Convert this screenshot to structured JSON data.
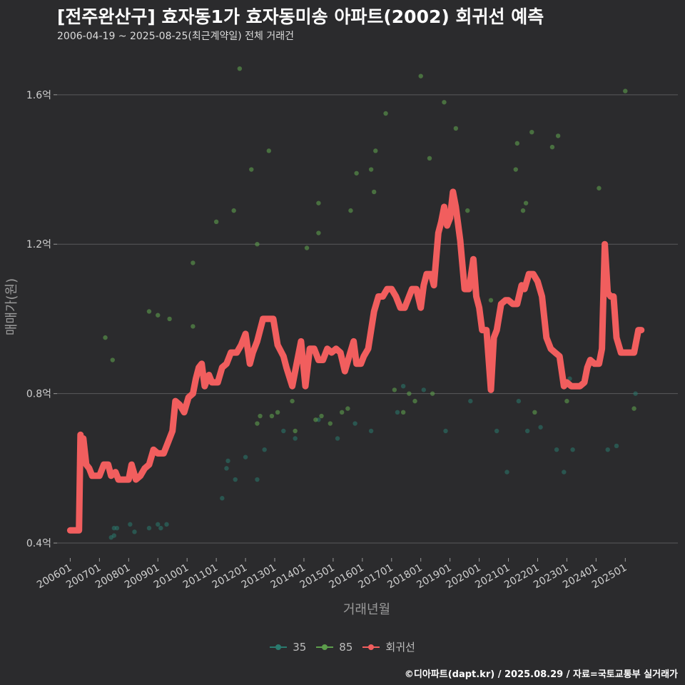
{
  "title": "[전주완산구] 효자동1가 효자동미송 아파트(2002) 회귀선 예측",
  "subtitle": "2006-04-19 ~ 2025-08-25(최근계약일) 전체 거래건",
  "credit": "©디아파트(dapt.kr) / 2025.08.29 / 자료=국토교통부 실거래가",
  "colors": {
    "s35": "#2a7a6e",
    "s85": "#5d9e4c",
    "reg": "#f15e5e",
    "grid": "#5a5a5c",
    "bg": "#2b2b2d"
  },
  "chart_data": {
    "type": "scatter",
    "xlabel": "거래년월",
    "ylabel": "매매가(원)",
    "x_range": [
      2005.55,
      2026.8
    ],
    "ylim": [
      0.36,
      1.72
    ],
    "y_ticks": [
      {
        "value": 0.4,
        "label": "0.4억"
      },
      {
        "value": 0.8,
        "label": "0.8억"
      },
      {
        "value": 1.2,
        "label": "1.2억"
      },
      {
        "value": 1.6,
        "label": "1.6억"
      }
    ],
    "x_ticks": [
      {
        "value": 2006.0,
        "label": "200601"
      },
      {
        "value": 2007.0,
        "label": "200701"
      },
      {
        "value": 2008.0,
        "label": "200801"
      },
      {
        "value": 2009.0,
        "label": "200901"
      },
      {
        "value": 2010.0,
        "label": "201001"
      },
      {
        "value": 2011.0,
        "label": "201101"
      },
      {
        "value": 2012.0,
        "label": "201201"
      },
      {
        "value": 2013.0,
        "label": "201301"
      },
      {
        "value": 2014.0,
        "label": "201401"
      },
      {
        "value": 2015.0,
        "label": "201501"
      },
      {
        "value": 2016.0,
        "label": "201601"
      },
      {
        "value": 2017.0,
        "label": "201701"
      },
      {
        "value": 2018.0,
        "label": "201801"
      },
      {
        "value": 2019.0,
        "label": "201901"
      },
      {
        "value": 2020.0,
        "label": "202001"
      },
      {
        "value": 2021.0,
        "label": "202101"
      },
      {
        "value": 2022.0,
        "label": "202201"
      },
      {
        "value": 2023.0,
        "label": "202301"
      },
      {
        "value": 2024.0,
        "label": "202401"
      },
      {
        "value": 2025.0,
        "label": "202501"
      }
    ],
    "series": [
      {
        "name": "35",
        "kind": "points",
        "points": [
          [
            2007.4,
            0.415
          ],
          [
            2007.5,
            0.42
          ],
          [
            2007.5,
            0.44
          ],
          [
            2007.6,
            0.44
          ],
          [
            2008.05,
            0.45
          ],
          [
            2008.2,
            0.43
          ],
          [
            2008.7,
            0.44
          ],
          [
            2009.0,
            0.45
          ],
          [
            2009.1,
            0.44
          ],
          [
            2009.3,
            0.45
          ],
          [
            2011.2,
            0.52
          ],
          [
            2011.35,
            0.6
          ],
          [
            2011.4,
            0.62
          ],
          [
            2011.65,
            0.57
          ],
          [
            2012.0,
            0.63
          ],
          [
            2012.4,
            0.57
          ],
          [
            2012.65,
            0.65
          ],
          [
            2013.3,
            0.7
          ],
          [
            2013.7,
            0.68
          ],
          [
            2014.5,
            0.73
          ],
          [
            2015.15,
            0.68
          ],
          [
            2015.75,
            0.72
          ],
          [
            2016.3,
            0.7
          ],
          [
            2017.4,
            0.82
          ],
          [
            2017.2,
            0.75
          ],
          [
            2018.1,
            0.81
          ],
          [
            2018.85,
            0.7
          ],
          [
            2019.7,
            0.78
          ],
          [
            2020.6,
            0.7
          ],
          [
            2020.95,
            0.59
          ],
          [
            2021.35,
            0.78
          ],
          [
            2021.65,
            0.7
          ],
          [
            2022.1,
            0.71
          ],
          [
            2022.65,
            0.65
          ],
          [
            2022.9,
            0.59
          ],
          [
            2023.1,
            0.84
          ],
          [
            2023.2,
            0.65
          ],
          [
            2024.4,
            0.65
          ],
          [
            2024.7,
            0.66
          ],
          [
            2025.35,
            0.8
          ]
        ]
      },
      {
        "name": "85",
        "kind": "points",
        "points": [
          [
            2007.2,
            0.95
          ],
          [
            2007.45,
            0.89
          ],
          [
            2008.7,
            1.02
          ],
          [
            2009.0,
            1.01
          ],
          [
            2009.4,
            1.0
          ],
          [
            2010.2,
            0.98
          ],
          [
            2010.2,
            1.15
          ],
          [
            2011.0,
            1.26
          ],
          [
            2011.6,
            1.29
          ],
          [
            2011.8,
            1.67
          ],
          [
            2012.2,
            1.4
          ],
          [
            2012.4,
            1.2
          ],
          [
            2012.4,
            0.72
          ],
          [
            2012.5,
            0.74
          ],
          [
            2012.8,
            1.45
          ],
          [
            2012.9,
            0.74
          ],
          [
            2013.1,
            0.75
          ],
          [
            2013.6,
            0.78
          ],
          [
            2013.7,
            0.7
          ],
          [
            2014.1,
            1.19
          ],
          [
            2014.4,
            0.73
          ],
          [
            2014.5,
            1.31
          ],
          [
            2014.5,
            1.23
          ],
          [
            2014.6,
            0.74
          ],
          [
            2014.9,
            0.72
          ],
          [
            2015.3,
            0.75
          ],
          [
            2015.5,
            0.76
          ],
          [
            2015.6,
            1.29
          ],
          [
            2015.8,
            1.39
          ],
          [
            2016.3,
            1.4
          ],
          [
            2016.4,
            1.34
          ],
          [
            2016.45,
            1.45
          ],
          [
            2016.8,
            1.55
          ],
          [
            2017.1,
            0.81
          ],
          [
            2017.4,
            0.75
          ],
          [
            2017.6,
            0.8
          ],
          [
            2017.8,
            0.78
          ],
          [
            2018.0,
            1.65
          ],
          [
            2018.3,
            1.43
          ],
          [
            2018.4,
            0.8
          ],
          [
            2018.8,
            1.58
          ],
          [
            2019.2,
            1.51
          ],
          [
            2019.6,
            1.29
          ],
          [
            2020.4,
            1.05
          ],
          [
            2021.25,
            1.4
          ],
          [
            2021.3,
            1.47
          ],
          [
            2021.5,
            1.29
          ],
          [
            2021.6,
            1.31
          ],
          [
            2021.8,
            1.5
          ],
          [
            2021.9,
            0.75
          ],
          [
            2022.5,
            1.46
          ],
          [
            2022.7,
            1.49
          ],
          [
            2023.0,
            0.78
          ],
          [
            2024.1,
            1.35
          ],
          [
            2025.0,
            1.61
          ],
          [
            2025.3,
            0.76
          ]
        ]
      },
      {
        "name": "회귀선",
        "kind": "line",
        "points": [
          [
            2006.0,
            0.434
          ],
          [
            2006.15,
            0.434
          ],
          [
            2006.3,
            0.434
          ],
          [
            2006.35,
            0.69
          ],
          [
            2006.4,
            0.62
          ],
          [
            2006.45,
            0.68
          ],
          [
            2006.55,
            0.61
          ],
          [
            2006.65,
            0.6
          ],
          [
            2006.75,
            0.58
          ],
          [
            2007.0,
            0.58
          ],
          [
            2007.15,
            0.61
          ],
          [
            2007.3,
            0.61
          ],
          [
            2007.4,
            0.58
          ],
          [
            2007.55,
            0.59
          ],
          [
            2007.65,
            0.57
          ],
          [
            2008.0,
            0.57
          ],
          [
            2008.1,
            0.61
          ],
          [
            2008.25,
            0.57
          ],
          [
            2008.4,
            0.58
          ],
          [
            2008.55,
            0.6
          ],
          [
            2008.7,
            0.61
          ],
          [
            2008.85,
            0.65
          ],
          [
            2009.0,
            0.64
          ],
          [
            2009.2,
            0.64
          ],
          [
            2009.35,
            0.67
          ],
          [
            2009.5,
            0.7
          ],
          [
            2009.6,
            0.78
          ],
          [
            2009.75,
            0.77
          ],
          [
            2009.9,
            0.75
          ],
          [
            2010.05,
            0.79
          ],
          [
            2010.2,
            0.8
          ],
          [
            2010.3,
            0.84
          ],
          [
            2010.4,
            0.87
          ],
          [
            2010.5,
            0.88
          ],
          [
            2010.6,
            0.82
          ],
          [
            2010.75,
            0.85
          ],
          [
            2010.85,
            0.83
          ],
          [
            2011.05,
            0.83
          ],
          [
            2011.2,
            0.87
          ],
          [
            2011.35,
            0.88
          ],
          [
            2011.5,
            0.91
          ],
          [
            2011.7,
            0.91
          ],
          [
            2011.85,
            0.93
          ],
          [
            2012.0,
            0.96
          ],
          [
            2012.15,
            0.88
          ],
          [
            2012.25,
            0.91
          ],
          [
            2012.4,
            0.94
          ],
          [
            2012.6,
            1.0
          ],
          [
            2012.8,
            1.0
          ],
          [
            2012.95,
            1.0
          ],
          [
            2013.1,
            0.93
          ],
          [
            2013.3,
            0.9
          ],
          [
            2013.4,
            0.87
          ],
          [
            2013.6,
            0.82
          ],
          [
            2013.75,
            0.88
          ],
          [
            2013.9,
            0.94
          ],
          [
            2014.05,
            0.82
          ],
          [
            2014.2,
            0.92
          ],
          [
            2014.35,
            0.92
          ],
          [
            2014.5,
            0.89
          ],
          [
            2014.65,
            0.89
          ],
          [
            2014.8,
            0.92
          ],
          [
            2014.95,
            0.91
          ],
          [
            2015.1,
            0.92
          ],
          [
            2015.25,
            0.91
          ],
          [
            2015.4,
            0.86
          ],
          [
            2015.55,
            0.9
          ],
          [
            2015.7,
            0.94
          ],
          [
            2015.8,
            0.88
          ],
          [
            2015.95,
            0.88
          ],
          [
            2016.05,
            0.9
          ],
          [
            2016.2,
            0.92
          ],
          [
            2016.3,
            0.97
          ],
          [
            2016.4,
            1.02
          ],
          [
            2016.55,
            1.06
          ],
          [
            2016.7,
            1.06
          ],
          [
            2016.85,
            1.08
          ],
          [
            2017.0,
            1.08
          ],
          [
            2017.15,
            1.06
          ],
          [
            2017.3,
            1.03
          ],
          [
            2017.45,
            1.03
          ],
          [
            2017.6,
            1.06
          ],
          [
            2017.7,
            1.08
          ],
          [
            2017.85,
            1.08
          ],
          [
            2018.0,
            1.03
          ],
          [
            2018.1,
            1.09
          ],
          [
            2018.2,
            1.12
          ],
          [
            2018.35,
            1.12
          ],
          [
            2018.45,
            1.09
          ],
          [
            2018.6,
            1.23
          ],
          [
            2018.7,
            1.26
          ],
          [
            2018.8,
            1.3
          ],
          [
            2018.9,
            1.25
          ],
          [
            2019.0,
            1.27
          ],
          [
            2019.1,
            1.34
          ],
          [
            2019.2,
            1.3
          ],
          [
            2019.35,
            1.21
          ],
          [
            2019.5,
            1.08
          ],
          [
            2019.65,
            1.08
          ],
          [
            2019.8,
            1.16
          ],
          [
            2019.9,
            1.06
          ],
          [
            2020.0,
            1.03
          ],
          [
            2020.1,
            0.97
          ],
          [
            2020.25,
            0.97
          ],
          [
            2020.4,
            0.81
          ],
          [
            2020.5,
            0.95
          ],
          [
            2020.6,
            0.97
          ],
          [
            2020.75,
            1.04
          ],
          [
            2020.9,
            1.05
          ],
          [
            2021.0,
            1.05
          ],
          [
            2021.15,
            1.04
          ],
          [
            2021.3,
            1.04
          ],
          [
            2021.45,
            1.09
          ],
          [
            2021.55,
            1.08
          ],
          [
            2021.7,
            1.12
          ],
          [
            2021.85,
            1.12
          ],
          [
            2022.0,
            1.1
          ],
          [
            2022.15,
            1.06
          ],
          [
            2022.3,
            0.95
          ],
          [
            2022.45,
            0.92
          ],
          [
            2022.6,
            0.91
          ],
          [
            2022.75,
            0.9
          ],
          [
            2022.9,
            0.82
          ],
          [
            2023.0,
            0.83
          ],
          [
            2023.15,
            0.82
          ],
          [
            2023.3,
            0.82
          ],
          [
            2023.45,
            0.82
          ],
          [
            2023.6,
            0.83
          ],
          [
            2023.7,
            0.87
          ],
          [
            2023.8,
            0.89
          ],
          [
            2023.95,
            0.88
          ],
          [
            2024.1,
            0.88
          ],
          [
            2024.2,
            0.92
          ],
          [
            2024.3,
            1.2
          ],
          [
            2024.4,
            1.07
          ],
          [
            2024.5,
            1.06
          ],
          [
            2024.6,
            1.06
          ],
          [
            2024.7,
            0.95
          ],
          [
            2024.85,
            0.91
          ],
          [
            2025.0,
            0.91
          ],
          [
            2025.15,
            0.91
          ],
          [
            2025.3,
            0.91
          ],
          [
            2025.45,
            0.97
          ],
          [
            2025.55,
            0.97
          ]
        ]
      }
    ],
    "legend_position": "bottom"
  },
  "legend": [
    {
      "key": "s35",
      "label": "35"
    },
    {
      "key": "s85",
      "label": "85"
    },
    {
      "key": "reg",
      "label": "회귀선"
    }
  ]
}
